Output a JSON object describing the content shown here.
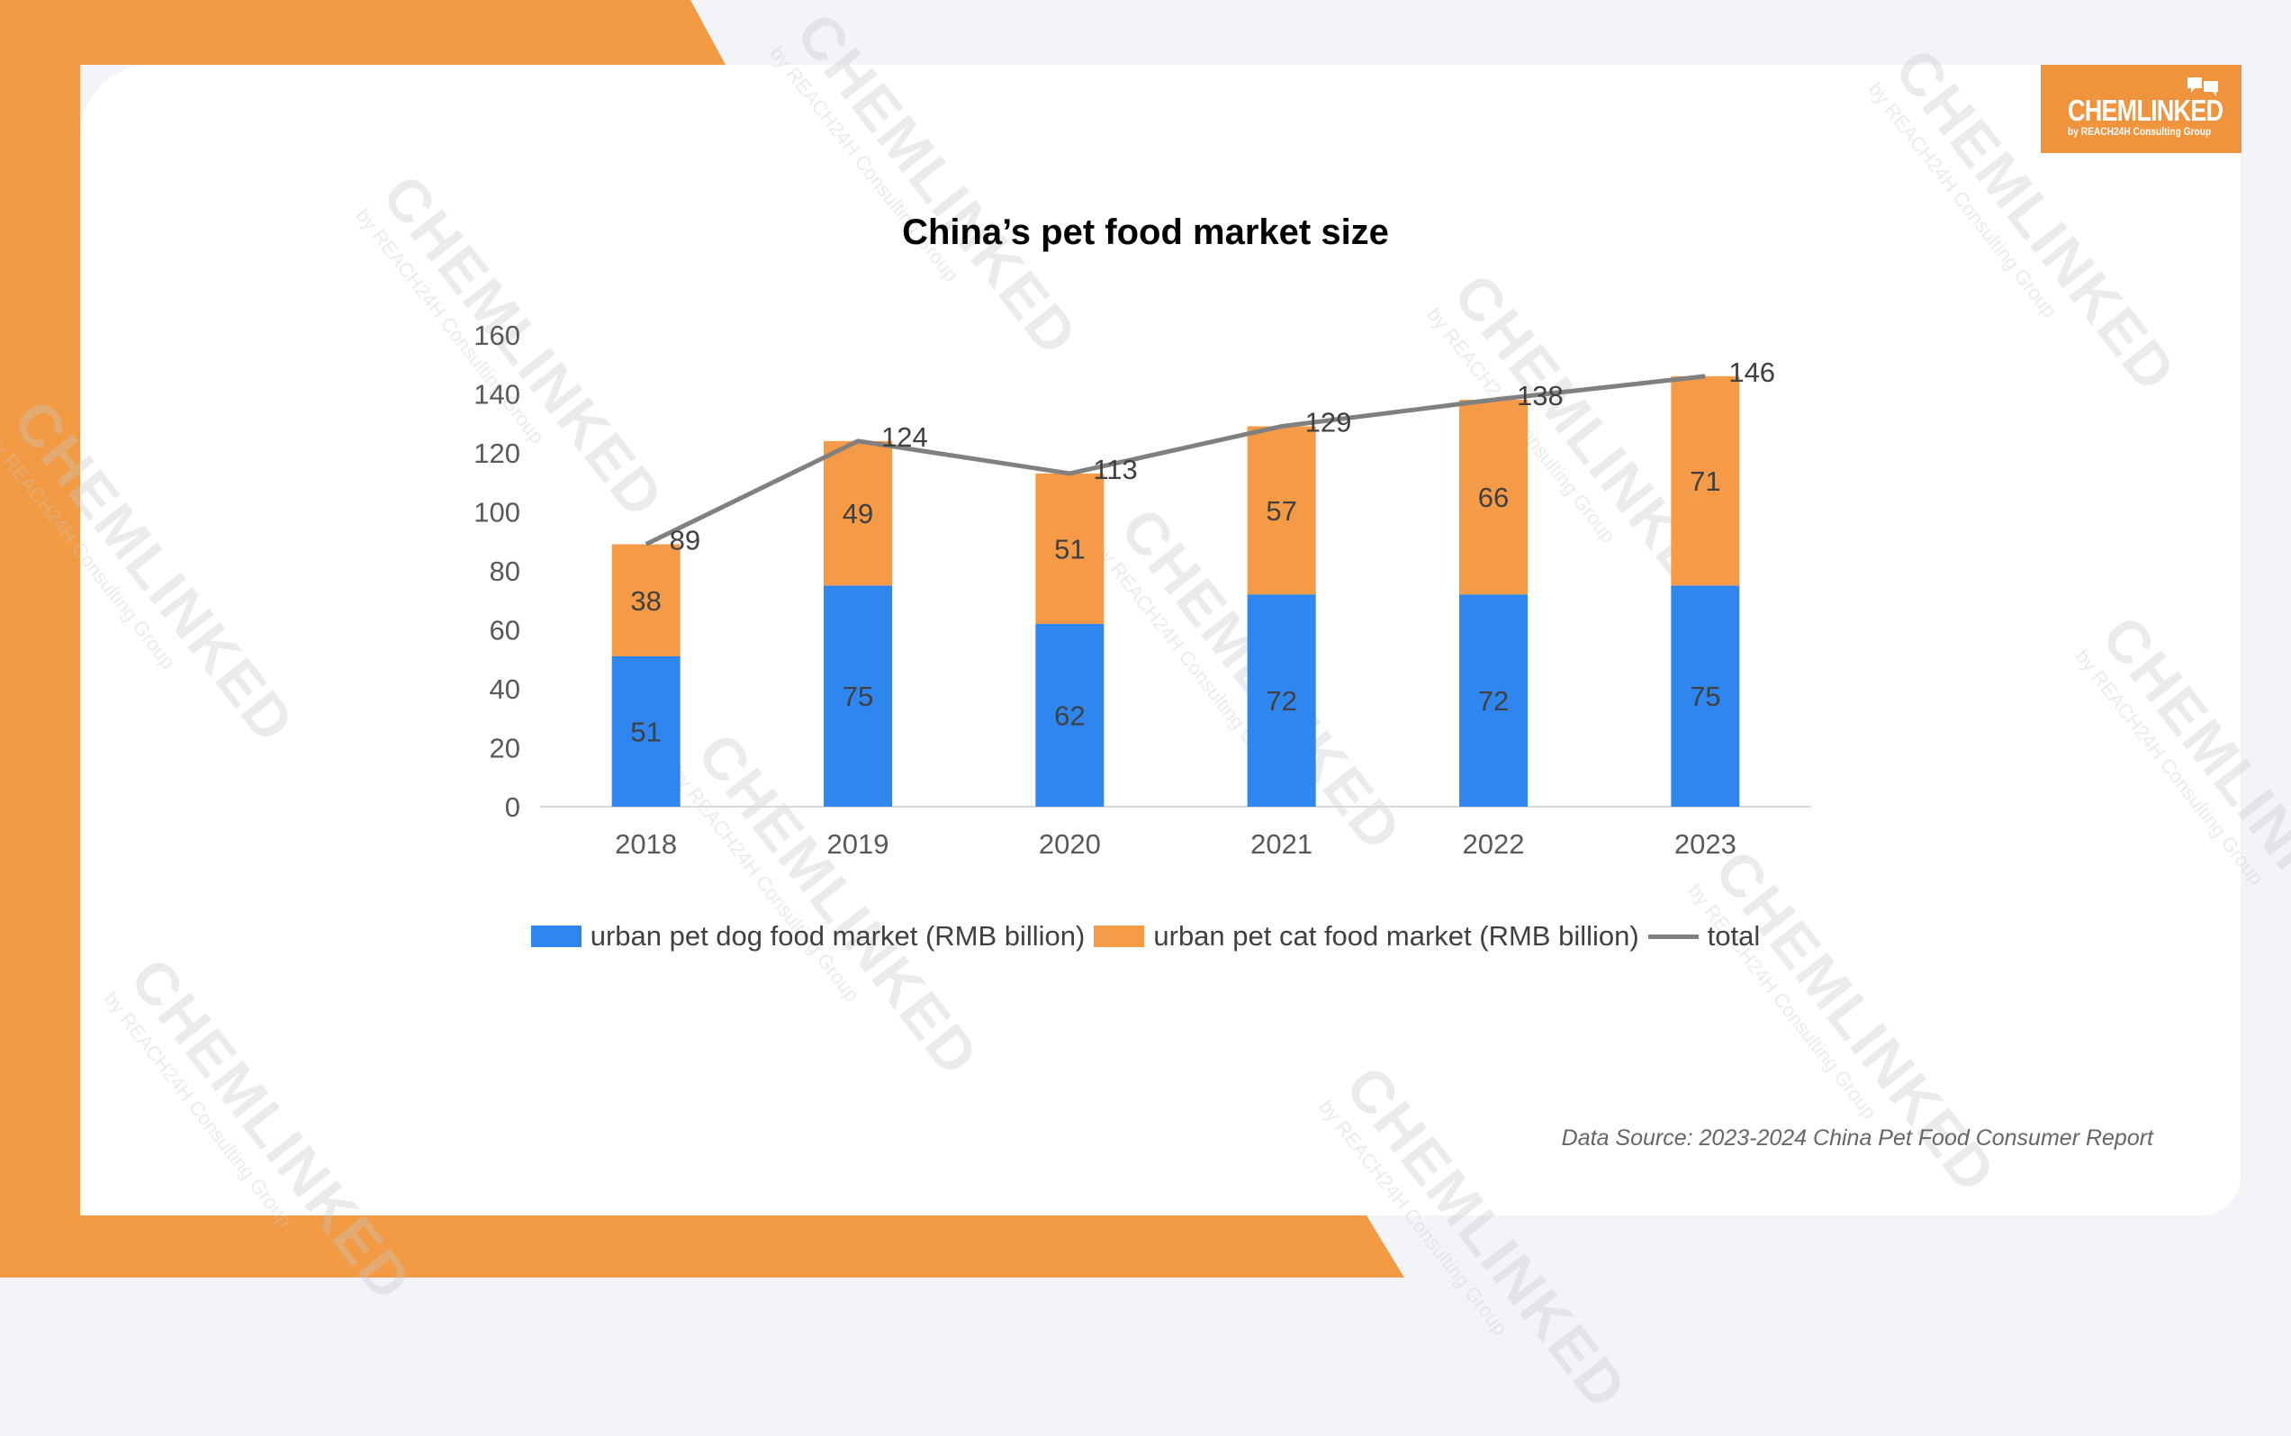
{
  "logo": {
    "name": "CHEMLINKED",
    "tagline": "by REACH24H Consulting Group"
  },
  "watermark": {
    "name": "CHEMLINKED",
    "tagline": "by REACH24H Consulting Group"
  },
  "source": "Data Source: 2023-2024 China Pet Food Consumer Report",
  "colors": {
    "accent": "#f29a44",
    "dog": "#2e86ee",
    "cat": "#f59a47",
    "total": "#808080"
  },
  "chart_data": {
    "type": "bar",
    "stacked": true,
    "title": "China’s pet food market size",
    "categories": [
      "2018",
      "2019",
      "2020",
      "2021",
      "2022",
      "2023"
    ],
    "ylim": [
      0,
      160
    ],
    "yticks": [
      "0",
      "20",
      "40",
      "60",
      "80",
      "100",
      "120",
      "140",
      "160"
    ],
    "grid": false,
    "legend_position": "bottom",
    "series": [
      {
        "name": "urban pet dog food market (RMB billion)",
        "type": "bar",
        "color": "#2e86ee",
        "values": [
          51,
          75,
          62,
          72,
          72,
          75
        ]
      },
      {
        "name": "urban pet cat food market (RMB billion)",
        "type": "bar",
        "color": "#f59a47",
        "values": [
          38,
          49,
          51,
          57,
          66,
          71
        ]
      },
      {
        "name": "total",
        "type": "line",
        "color": "#808080",
        "values": [
          89,
          124,
          113,
          129,
          138,
          146
        ]
      }
    ]
  }
}
